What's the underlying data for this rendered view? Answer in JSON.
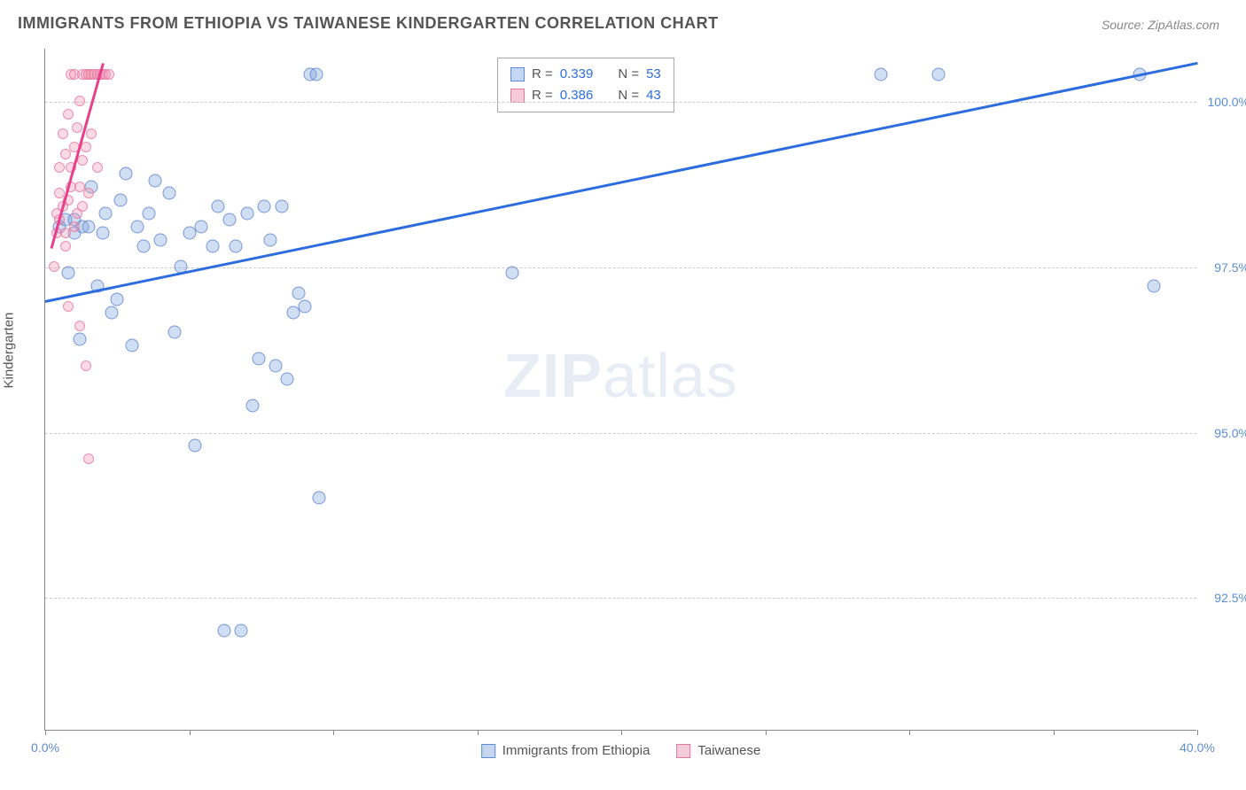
{
  "title": "IMMIGRANTS FROM ETHIOPIA VS TAIWANESE KINDERGARTEN CORRELATION CHART",
  "source": "Source: ZipAtlas.com",
  "ylabel": "Kindergarten",
  "watermark": {
    "bold": "ZIP",
    "rest": "atlas"
  },
  "chart": {
    "type": "scatter",
    "background_color": "#ffffff",
    "grid_color": "#cccccc",
    "axis_color": "#888888",
    "xlim": [
      0,
      40
    ],
    "ylim": [
      90.5,
      100.8
    ],
    "xtick_positions": [
      0,
      5,
      10,
      15,
      20,
      25,
      30,
      35,
      40
    ],
    "xtick_labels": {
      "0": "0.0%",
      "40": "40.0%"
    },
    "ytick_positions": [
      92.5,
      95.0,
      97.5,
      100.0
    ],
    "ytick_labels": [
      "92.5%",
      "95.0%",
      "97.5%",
      "100.0%"
    ],
    "series": [
      {
        "name": "Immigrants from Ethiopia",
        "color_fill": "rgba(120,160,220,0.35)",
        "color_stroke": "rgba(80,120,200,0.7)",
        "swatch_fill": "#c5d6f2",
        "swatch_stroke": "#5b8dd6",
        "marker_size": 15,
        "r": "0.339",
        "n": "53",
        "trend": {
          "x1": 0,
          "y1": 97.0,
          "x2": 40,
          "y2": 100.6,
          "color": "#2d6cdf",
          "width": 3
        },
        "points": [
          [
            0.5,
            98.1
          ],
          [
            0.7,
            98.2
          ],
          [
            0.8,
            97.4
          ],
          [
            1.0,
            98.0
          ],
          [
            1.0,
            98.2
          ],
          [
            1.2,
            96.4
          ],
          [
            1.3,
            98.1
          ],
          [
            1.5,
            98.1
          ],
          [
            1.6,
            98.7
          ],
          [
            1.8,
            97.2
          ],
          [
            2.0,
            98.0
          ],
          [
            2.1,
            98.3
          ],
          [
            2.3,
            96.8
          ],
          [
            2.5,
            97.0
          ],
          [
            2.6,
            98.5
          ],
          [
            2.8,
            98.9
          ],
          [
            3.0,
            96.3
          ],
          [
            3.2,
            98.1
          ],
          [
            3.4,
            97.8
          ],
          [
            3.6,
            98.3
          ],
          [
            3.8,
            98.8
          ],
          [
            4.0,
            97.9
          ],
          [
            4.3,
            98.6
          ],
          [
            4.5,
            96.5
          ],
          [
            4.7,
            97.5
          ],
          [
            5.0,
            98.0
          ],
          [
            5.2,
            94.8
          ],
          [
            5.4,
            98.1
          ],
          [
            5.8,
            97.8
          ],
          [
            6.0,
            98.4
          ],
          [
            6.2,
            92.0
          ],
          [
            6.4,
            98.2
          ],
          [
            6.6,
            97.8
          ],
          [
            6.8,
            92.0
          ],
          [
            7.0,
            98.3
          ],
          [
            7.2,
            95.4
          ],
          [
            7.4,
            96.1
          ],
          [
            7.6,
            98.4
          ],
          [
            7.8,
            97.9
          ],
          [
            8.0,
            96.0
          ],
          [
            8.2,
            98.4
          ],
          [
            8.4,
            95.8
          ],
          [
            8.6,
            96.8
          ],
          [
            8.8,
            97.1
          ],
          [
            9.0,
            96.9
          ],
          [
            9.2,
            100.4
          ],
          [
            9.4,
            100.4
          ],
          [
            9.5,
            94.0
          ],
          [
            16.2,
            97.4
          ],
          [
            29.0,
            100.4
          ],
          [
            31.0,
            100.4
          ],
          [
            38.0,
            100.4
          ],
          [
            38.5,
            97.2
          ]
        ]
      },
      {
        "name": "Taiwanese",
        "color_fill": "rgba(240,150,180,0.35)",
        "color_stroke": "rgba(230,110,150,0.7)",
        "swatch_fill": "#f6cbd9",
        "swatch_stroke": "#e07aa0",
        "marker_size": 12,
        "r": "0.386",
        "n": "43",
        "trend": {
          "x1": 0.2,
          "y1": 97.8,
          "x2": 2.0,
          "y2": 100.6,
          "color": "#e83e8c",
          "width": 3
        },
        "points": [
          [
            0.3,
            97.5
          ],
          [
            0.4,
            98.0
          ],
          [
            0.4,
            98.3
          ],
          [
            0.5,
            98.6
          ],
          [
            0.5,
            99.0
          ],
          [
            0.5,
            98.2
          ],
          [
            0.6,
            99.5
          ],
          [
            0.6,
            98.4
          ],
          [
            0.7,
            97.8
          ],
          [
            0.7,
            99.2
          ],
          [
            0.7,
            98.0
          ],
          [
            0.8,
            99.8
          ],
          [
            0.8,
            98.5
          ],
          [
            0.8,
            96.9
          ],
          [
            0.9,
            100.4
          ],
          [
            0.9,
            98.7
          ],
          [
            0.9,
            99.0
          ],
          [
            1.0,
            99.3
          ],
          [
            1.0,
            98.1
          ],
          [
            1.0,
            100.4
          ],
          [
            1.1,
            99.6
          ],
          [
            1.1,
            98.3
          ],
          [
            1.2,
            100.0
          ],
          [
            1.2,
            98.7
          ],
          [
            1.2,
            96.6
          ],
          [
            1.3,
            100.4
          ],
          [
            1.3,
            99.1
          ],
          [
            1.3,
            98.4
          ],
          [
            1.4,
            100.4
          ],
          [
            1.4,
            99.3
          ],
          [
            1.5,
            100.4
          ],
          [
            1.5,
            98.6
          ],
          [
            1.5,
            94.6
          ],
          [
            1.6,
            100.4
          ],
          [
            1.6,
            99.5
          ],
          [
            1.7,
            100.4
          ],
          [
            1.8,
            100.4
          ],
          [
            1.8,
            99.0
          ],
          [
            1.9,
            100.4
          ],
          [
            2.0,
            100.4
          ],
          [
            2.1,
            100.4
          ],
          [
            2.2,
            100.4
          ],
          [
            1.4,
            96.0
          ]
        ]
      }
    ],
    "legend_top": {
      "r_label": "R =",
      "n_label": "N =",
      "label_color": "#555555",
      "value_color": "#2d6cdf"
    },
    "legend_bottom": {
      "items": [
        "Immigrants from Ethiopia",
        "Taiwanese"
      ]
    }
  }
}
